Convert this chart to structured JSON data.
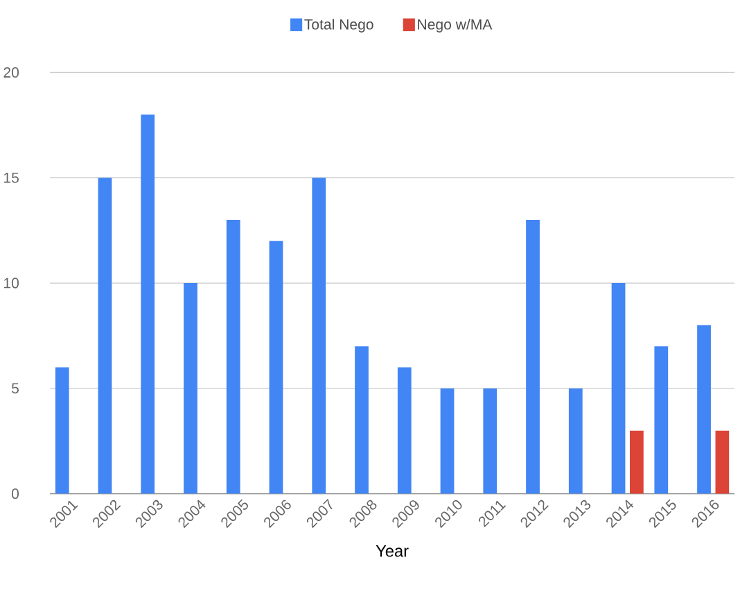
{
  "chart_data": {
    "type": "bar",
    "xlabel": "Year",
    "categories": [
      "2001",
      "2002",
      "2003",
      "2004",
      "2005",
      "2006",
      "2007",
      "2008",
      "2009",
      "2010",
      "2011",
      "2012",
      "2013",
      "2014",
      "2015",
      "2016"
    ],
    "series": [
      {
        "name": "Total Nego",
        "color": "#4285f4",
        "values": [
          6,
          15,
          18,
          10,
          13,
          12,
          15,
          7,
          6,
          5,
          5,
          13,
          5,
          10,
          7,
          8
        ]
      },
      {
        "name": "Nego w/MA",
        "color": "#db4437",
        "values": [
          0,
          0,
          0,
          0,
          0,
          0,
          0,
          0,
          0,
          0,
          0,
          0,
          0,
          3,
          0,
          3
        ]
      }
    ],
    "ylim": [
      0,
      20
    ],
    "yticks": [
      0,
      5,
      10,
      15,
      20
    ],
    "grid": "y",
    "legend": "top"
  }
}
